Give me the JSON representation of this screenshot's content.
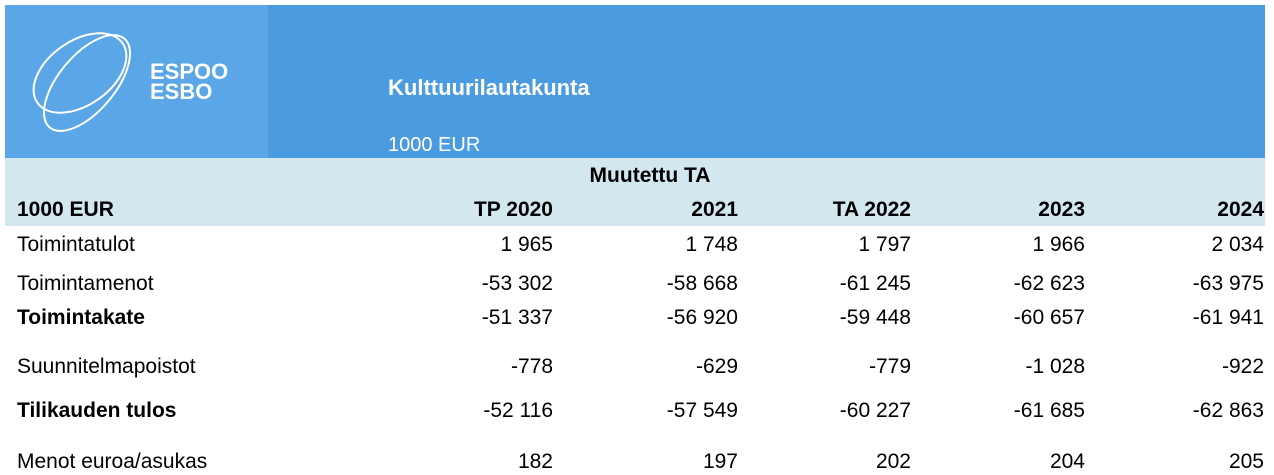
{
  "header": {
    "logo_lines": [
      "ESPOO",
      "ESBO"
    ],
    "title": "Kulttuurilautakunta",
    "unit": "1000 EUR"
  },
  "table": {
    "group_header": "Muutettu TA",
    "columns": [
      "1000 EUR",
      "TP 2020",
      "2021",
      "TA 2022",
      "2023",
      "2024"
    ],
    "rows": [
      {
        "label": "Toimintatulot",
        "bold": false,
        "values": [
          "1 965",
          "1 748",
          "1 797",
          "1 966",
          "2 034"
        ]
      },
      {
        "label": "Toimintamenot",
        "bold": false,
        "values": [
          "-53 302",
          "-58 668",
          "-61 245",
          "-62 623",
          "-63 975"
        ]
      },
      {
        "label": "Toimintakate",
        "bold": true,
        "values": [
          "-51 337",
          "-56 920",
          "-59 448",
          "-60 657",
          "-61 941"
        ]
      },
      {
        "label": "Suunnitelmapoistot",
        "bold": false,
        "values": [
          "-778",
          "-629",
          "-779",
          "-1 028",
          "-922"
        ]
      },
      {
        "label": "Tilikauden tulos",
        "bold": true,
        "values": [
          "-52 116",
          "-57 549",
          "-60 227",
          "-61 685",
          "-62 863"
        ]
      },
      {
        "label": "Menot euroa/asukas",
        "bold": false,
        "values": [
          "182",
          "197",
          "202",
          "204",
          "205"
        ]
      }
    ]
  }
}
